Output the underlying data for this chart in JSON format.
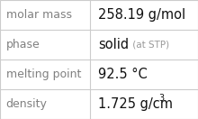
{
  "rows": [
    {
      "label": "molar mass",
      "value": "258.19 g/mol",
      "annotation": null,
      "superscript": null
    },
    {
      "label": "phase",
      "value": "solid",
      "annotation": " (at STP)",
      "superscript": null
    },
    {
      "label": "melting point",
      "value": "92.5 °C",
      "annotation": null,
      "superscript": null
    },
    {
      "label": "density",
      "value": "1.725 g/cm",
      "annotation": null,
      "superscript": "3"
    }
  ],
  "bg_color": "#ffffff",
  "border_color": "#cccccc",
  "label_color": "#808080",
  "value_color": "#111111",
  "annotation_color": "#999999",
  "font_size_label": 9.0,
  "font_size_value": 10.5,
  "font_size_annotation": 7.5,
  "font_size_super": 7.0,
  "divider_color": "#cccccc",
  "col_split": 0.455
}
